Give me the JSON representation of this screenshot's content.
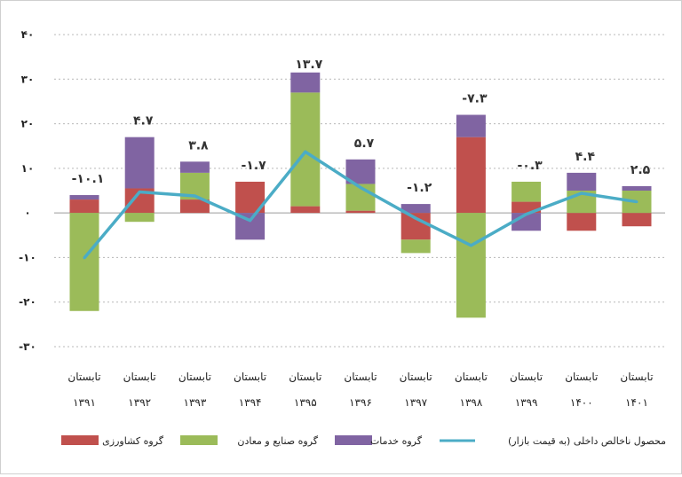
{
  "chart_data": {
    "type": "bar",
    "stacked": true,
    "categories": [
      [
        "تابستان",
        "۱۳۹۱"
      ],
      [
        "تابستان",
        "۱۳۹۲"
      ],
      [
        "تابستان",
        "۱۳۹۳"
      ],
      [
        "تابستان",
        "۱۳۹۴"
      ],
      [
        "تابستان",
        "۱۳۹۵"
      ],
      [
        "تابستان",
        "۱۳۹۶"
      ],
      [
        "تابستان",
        "۱۳۹۷"
      ],
      [
        "تابستان",
        "۱۳۹۸"
      ],
      [
        "تابستان",
        "۱۳۹۹"
      ],
      [
        "تابستان",
        "۱۴۰۰"
      ],
      [
        "تابستان",
        "۱۴۰۱"
      ]
    ],
    "ylim": [
      -30,
      40
    ],
    "yticks": [
      40,
      30,
      20,
      10,
      0,
      -10,
      -20,
      -30
    ],
    "ytick_labels": [
      "۴۰",
      "۳۰",
      "۲۰",
      "۱۰",
      "۰",
      "-۱۰",
      "-۲۰",
      "-۳۰"
    ],
    "grid": true,
    "legend_position": "bottom",
    "series": [
      {
        "name": "گروه کشاورزی",
        "color": "#c0504d",
        "values": [
          3,
          5.5,
          3,
          7,
          1.5,
          0.5,
          -6,
          17,
          2.5,
          -4,
          -3
        ]
      },
      {
        "name": "گروه صنایع و معادن",
        "color": "#9bbb59",
        "values": [
          -22,
          -2,
          6,
          0,
          25.5,
          6,
          -3,
          -23.5,
          4.5,
          5,
          5
        ]
      },
      {
        "name": "گروه خدمات",
        "color": "#8064a2",
        "values": [
          1,
          11.5,
          2.5,
          -6,
          4.5,
          5.5,
          2,
          5,
          -4,
          4,
          1
        ]
      }
    ],
    "line": {
      "name": "محصول ناخالص داخلی (به قیمت بازار)",
      "color": "#4bacc6",
      "values": [
        -10.1,
        4.7,
        3.8,
        -1.7,
        13.7,
        5.7,
        -1.2,
        -7.3,
        -0.3,
        4.4,
        2.5
      ]
    },
    "data_labels": [
      "-۱۰.۱",
      "۴.۷",
      "۳.۸",
      "-۱.۷",
      "۱۳.۷",
      "۵.۷",
      "-۱.۲",
      "-۷.۳",
      "-۰.۳",
      "۴.۴",
      "۲.۵"
    ]
  }
}
